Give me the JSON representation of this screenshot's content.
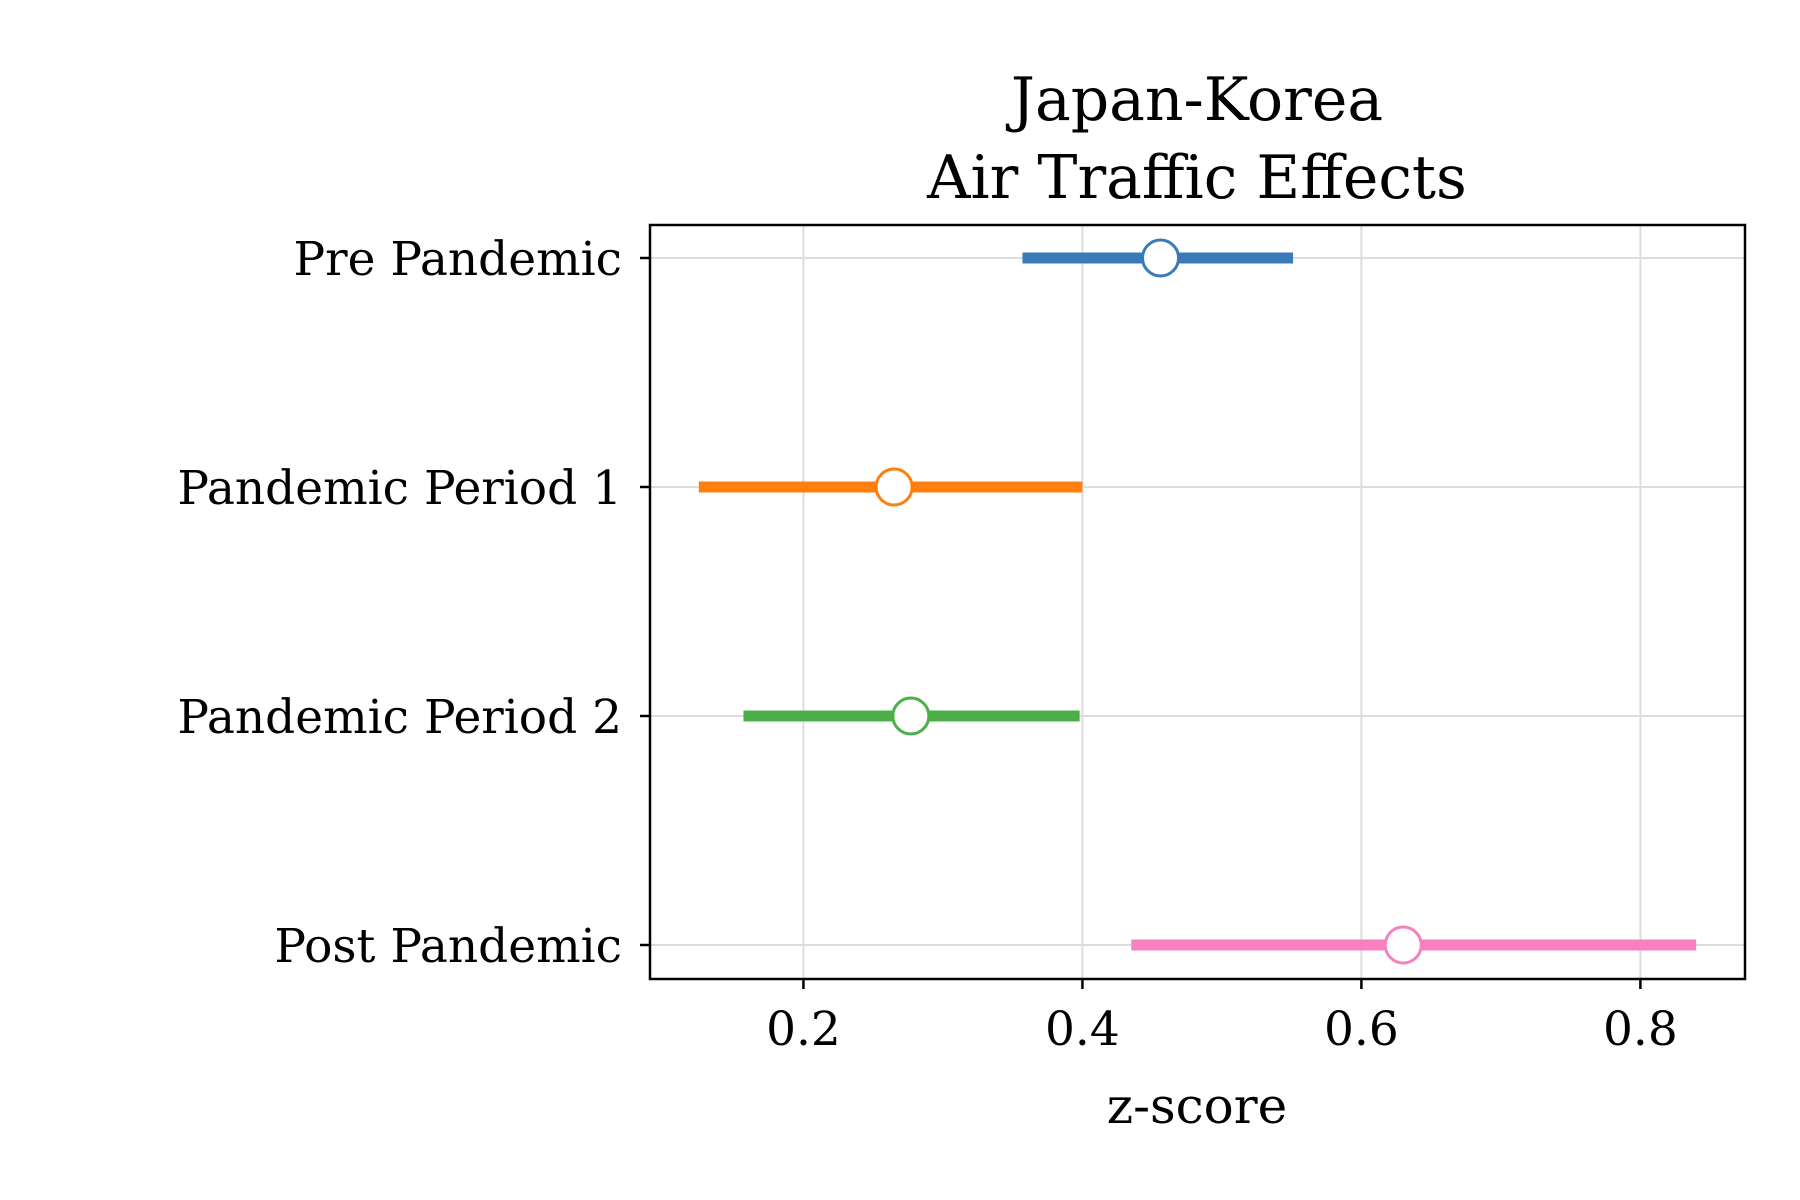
{
  "chart_data": {
    "type": "scatter",
    "subtype": "forest-plot",
    "title_lines": [
      "Japan-Korea",
      "Air Traffic Effects"
    ],
    "xlabel": "z-score",
    "ylabel": "",
    "xlim": [
      0.09,
      0.875
    ],
    "xticks": [
      0.2,
      0.4,
      0.6,
      0.8
    ],
    "xtick_labels": [
      "0.2",
      "0.4",
      "0.6",
      "0.8"
    ],
    "grid": true,
    "legend": "none",
    "categories": [
      "Pre Pandemic",
      "Pandemic Period 1",
      "Pandemic Period 2",
      "Post Pandemic"
    ],
    "series": [
      {
        "category": "Pre Pandemic",
        "estimate": 0.456,
        "ci_low": 0.357,
        "ci_high": 0.551,
        "color": "#3a7ab8"
      },
      {
        "category": "Pandemic Period 1",
        "estimate": 0.265,
        "ci_low": 0.125,
        "ci_high": 0.4,
        "color": "#ff7f0e"
      },
      {
        "category": "Pandemic Period 2",
        "estimate": 0.277,
        "ci_low": 0.157,
        "ci_high": 0.398,
        "color": "#4daf4a"
      },
      {
        "category": "Post Pandemic",
        "estimate": 0.63,
        "ci_low": 0.435,
        "ci_high": 0.84,
        "color": "#f781bf"
      }
    ]
  }
}
